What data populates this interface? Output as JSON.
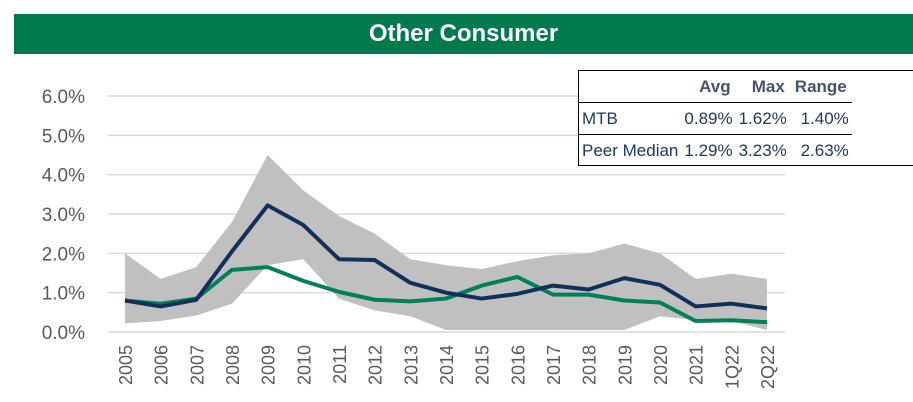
{
  "chart_data": {
    "type": "line",
    "title": "Other Consumer",
    "categories": [
      "2005",
      "2006",
      "2007",
      "2008",
      "2009",
      "2010",
      "2011",
      "2012",
      "2013",
      "2014",
      "2015",
      "2016",
      "2017",
      "2018",
      "2019",
      "2020",
      "2021",
      "1Q22",
      "2Q22"
    ],
    "band": {
      "color": "#c0c0c0",
      "lower": [
        0.22,
        0.28,
        0.42,
        0.72,
        1.7,
        1.85,
        0.85,
        0.55,
        0.4,
        0.05,
        0.05,
        0.05,
        0.05,
        0.05,
        0.05,
        0.4,
        0.3,
        0.28,
        0.05
      ],
      "upper": [
        2.0,
        1.35,
        1.65,
        2.8,
        4.5,
        3.6,
        2.95,
        2.5,
        1.85,
        1.7,
        1.6,
        1.8,
        1.95,
        2.0,
        2.25,
        2.0,
        1.35,
        1.48,
        1.35
      ]
    },
    "series": [
      {
        "color": "#00805a",
        "values": [
          0.8,
          0.72,
          0.85,
          1.58,
          1.65,
          1.3,
          1.02,
          0.82,
          0.78,
          0.85,
          1.18,
          1.4,
          0.95,
          0.95,
          0.8,
          0.75,
          0.28,
          0.3,
          0.25
        ]
      },
      {
        "color": "#12305a",
        "values": [
          0.8,
          0.65,
          0.82,
          2.05,
          3.22,
          2.72,
          1.85,
          1.83,
          1.25,
          1.0,
          0.85,
          0.97,
          1.18,
          1.08,
          1.37,
          1.2,
          0.65,
          0.72,
          0.6
        ]
      }
    ],
    "ylim": [
      0,
      6.2
    ],
    "yticks": [
      {
        "value": 0,
        "label": "0.0%"
      },
      {
        "value": 1,
        "label": "1.0%"
      },
      {
        "value": 2,
        "label": "2.0%"
      },
      {
        "value": 3,
        "label": "3.0%"
      },
      {
        "value": 4,
        "label": "4.0%"
      },
      {
        "value": 5,
        "label": "5.0%"
      },
      {
        "value": 6,
        "label": "6.0%"
      }
    ],
    "grid": true,
    "table": {
      "header": [
        "Avg",
        "Max",
        "Range"
      ],
      "rows": [
        [
          "MTB",
          "0.89%",
          "1.62%",
          "1.40%"
        ],
        [
          "Peer Median",
          "1.29%",
          "3.23%",
          "2.63%"
        ]
      ]
    }
  }
}
